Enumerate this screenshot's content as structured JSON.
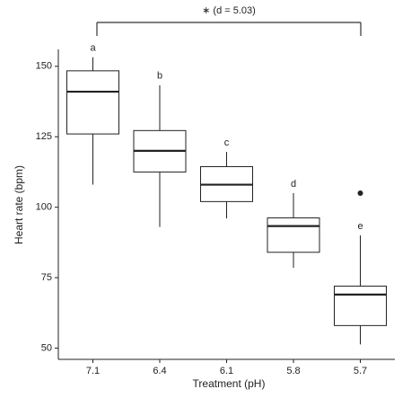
{
  "chart_data": {
    "type": "box",
    "annotation": "∗ (d = 5.03)",
    "x_label": "Treatment (pH)",
    "y_label": "Heart rate (bpm)",
    "categories": [
      "7.1",
      "6.4",
      "6.1",
      "5.8",
      "5.7"
    ],
    "group_labels": [
      "a",
      "b",
      "c",
      "d",
      "e"
    ],
    "min": [
      108,
      93,
      96,
      78.5,
      51.3
    ],
    "q1": [
      126,
      112.5,
      102,
      84,
      58
    ],
    "median": [
      141,
      120,
      108,
      93.3,
      69
    ],
    "q3": [
      148.4,
      127.2,
      114.4,
      96.2,
      72
    ],
    "max": [
      153.2,
      143.3,
      119.6,
      105,
      90
    ],
    "outliers": [
      [],
      [],
      [],
      [],
      [
        105
      ]
    ],
    "color": "#222222",
    "ylim": [
      46,
      156
    ],
    "yticks": [
      50,
      75,
      100,
      125,
      150
    ]
  }
}
